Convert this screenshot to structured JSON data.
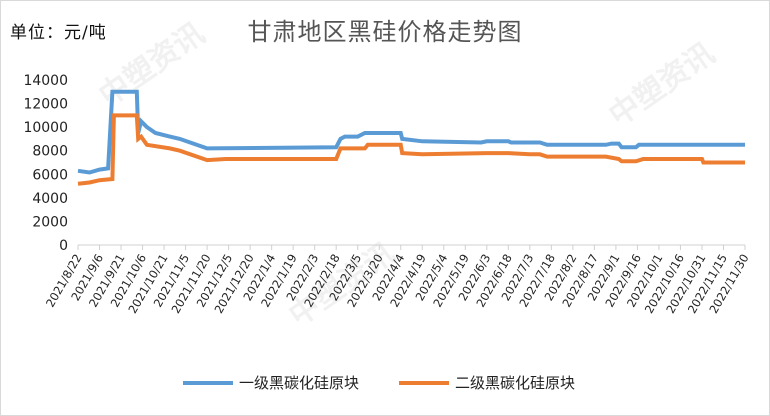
{
  "unit_label": "单位：元/吨",
  "watermarks": [
    "中塑资讯",
    "中塑资讯",
    "中塑资讯"
  ],
  "colors": {
    "series1": "#5B9BD5",
    "series2": "#ED7D31",
    "axis": "#d0d0d0"
  },
  "chart_data": {
    "type": "line",
    "title": "甘肃地区黑硅价格走势图",
    "xlabel": "",
    "ylabel": "",
    "ylim": [
      0,
      14000
    ],
    "yticks": [
      0,
      2000,
      4000,
      6000,
      8000,
      10000,
      12000,
      14000
    ],
    "grid": false,
    "legend": "bottom",
    "x": [
      "2021/8/22",
      "2021/9/6",
      "2021/9/21",
      "2021/10/6",
      "2021/10/21",
      "2021/11/5",
      "2021/11/20",
      "2021/12/5",
      "2021/12/20",
      "2022/1/4",
      "2022/1/19",
      "2022/2/3",
      "2022/2/18",
      "2022/3/5",
      "2022/3/20",
      "2022/4/4",
      "2022/4/19",
      "2022/5/4",
      "2022/5/19",
      "2022/6/3",
      "2022/6/18",
      "2022/7/3",
      "2022/7/18",
      "2022/8/2",
      "2022/8/17",
      "2022/9/1",
      "2022/9/16",
      "2022/10/1",
      "2022/10/16",
      "2022/10/31",
      "2022/11/15",
      "2022/11/30"
    ],
    "series": [
      {
        "name": "一级黑碳化硅原块",
        "points": [
          [
            "2021/8/22",
            6300
          ],
          [
            "2021/8/30",
            6150
          ],
          [
            "2021/9/6",
            6400
          ],
          [
            "2021/9/12",
            6500
          ],
          [
            "2021/9/15",
            13000
          ],
          [
            "2021/10/2",
            13000
          ],
          [
            "2021/10/3",
            9500
          ],
          [
            "2021/10/5",
            10500
          ],
          [
            "2021/10/9",
            10000
          ],
          [
            "2021/10/15",
            9500
          ],
          [
            "2021/10/25",
            9200
          ],
          [
            "2021/11/1",
            9000
          ],
          [
            "2021/11/20",
            8200
          ],
          [
            "2022/2/18",
            8300
          ],
          [
            "2022/2/21",
            9000
          ],
          [
            "2022/2/24",
            9200
          ],
          [
            "2022/3/5",
            9200
          ],
          [
            "2022/3/10",
            9500
          ],
          [
            "2022/4/4",
            9500
          ],
          [
            "2022/4/5",
            9000
          ],
          [
            "2022/4/19",
            8800
          ],
          [
            "2022/5/30",
            8700
          ],
          [
            "2022/6/3",
            8800
          ],
          [
            "2022/6/18",
            8800
          ],
          [
            "2022/6/20",
            8700
          ],
          [
            "2022/7/10",
            8700
          ],
          [
            "2022/7/15",
            8500
          ],
          [
            "2022/8/25",
            8500
          ],
          [
            "2022/8/29",
            8600
          ],
          [
            "2022/9/3",
            8600
          ],
          [
            "2022/9/5",
            8300
          ],
          [
            "2022/9/15",
            8300
          ],
          [
            "2022/9/17",
            8500
          ],
          [
            "2022/11/30",
            8500
          ]
        ]
      },
      {
        "name": "二级黑碳化硅原块",
        "points": [
          [
            "2021/8/22",
            5200
          ],
          [
            "2021/8/30",
            5300
          ],
          [
            "2021/9/6",
            5500
          ],
          [
            "2021/9/15",
            5600
          ],
          [
            "2021/9/16",
            11000
          ],
          [
            "2021/10/2",
            11000
          ],
          [
            "2021/10/3",
            9000
          ],
          [
            "2021/10/5",
            9200
          ],
          [
            "2021/10/9",
            8500
          ],
          [
            "2021/10/25",
            8200
          ],
          [
            "2021/11/1",
            8000
          ],
          [
            "2021/11/20",
            7200
          ],
          [
            "2021/12/3",
            7300
          ],
          [
            "2022/2/18",
            7300
          ],
          [
            "2022/2/21",
            8200
          ],
          [
            "2022/3/10",
            8200
          ],
          [
            "2022/3/12",
            8500
          ],
          [
            "2022/4/4",
            8500
          ],
          [
            "2022/4/5",
            7800
          ],
          [
            "2022/4/19",
            7700
          ],
          [
            "2022/6/3",
            7800
          ],
          [
            "2022/6/18",
            7800
          ],
          [
            "2022/7/3",
            7700
          ],
          [
            "2022/7/10",
            7700
          ],
          [
            "2022/7/15",
            7500
          ],
          [
            "2022/8/25",
            7500
          ],
          [
            "2022/9/3",
            7300
          ],
          [
            "2022/9/5",
            7100
          ],
          [
            "2022/9/15",
            7100
          ],
          [
            "2022/9/20",
            7300
          ],
          [
            "2022/10/31",
            7300
          ],
          [
            "2022/11/1",
            7000
          ],
          [
            "2022/11/30",
            7000
          ]
        ]
      }
    ]
  }
}
